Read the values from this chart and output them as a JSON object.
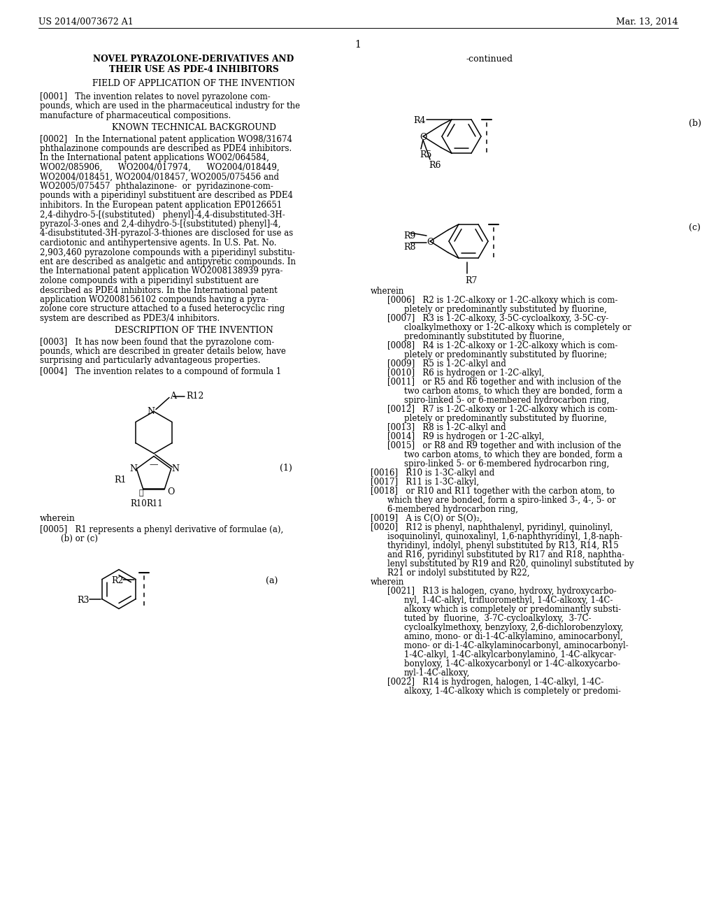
{
  "bg_color": "#ffffff",
  "header_left": "US 2014/0073672 A1",
  "header_right": "Mar. 13, 2014",
  "page_number": "1",
  "title_line1": "NOVEL PYRAZOLONE-DERIVATIVES AND",
  "title_line2": "THEIR USE AS PDE-4 INHIBITORS",
  "section1": "FIELD OF APPLICATION OF THE INVENTION",
  "para0001_lines": [
    "[0001]   The invention relates to novel pyrazolone com-",
    "pounds, which are used in the pharmaceutical industry for the",
    "manufacture of pharmaceutical compositions."
  ],
  "section2": "KNOWN TECHNICAL BACKGROUND",
  "para0002_lines": [
    "[0002]   In the International patent application WO98/31674",
    "phthalazinone compounds are described as PDE4 inhibitors.",
    "In the International patent applications WO02/064584,",
    "WO02/085906,      WO2004/017974,      WO2004/018449,",
    "WO2004/018451, WO2004/018457, WO2005/075456 and",
    "WO2005/075457  phthalazinone-  or  pyridazinone-com-",
    "pounds with a piperidinyl substituent are described as PDE4",
    "inhibitors. In the European patent application EP0126651",
    "2,4-dihydro-5-[(substituted)   phenyl]-4,4-disubstituted-3H-",
    "pyrazol-3-ones and 2,4-dihydro-5-[(substituted) phenyl]-4,",
    "4-disubstituted-3H-pyrazol-3-thiones are disclosed for use as",
    "cardiotonic and antihypertensive agents. In U.S. Pat. No.",
    "2,903,460 pyrazolone compounds with a piperidinyl substitu-",
    "ent are described as analgetic and antipyretic compounds. In",
    "the International patent application WO2008138939 pyra-",
    "zolone compounds with a piperidinyl substituent are",
    "described as PDE4 inhibitors. In the International patent",
    "application WO2008156102 compounds having a pyra-",
    "zolone core structure attached to a fused heterocyclic ring",
    "system are described as PDE3/4 inhibitors."
  ],
  "section3": "DESCRIPTION OF THE INVENTION",
  "para0003_lines": [
    "[0003]   It has now been found that the pyrazolone com-",
    "pounds, which are described in greater details below, have",
    "surprising and particularly advantageous properties."
  ],
  "para0004_lines": [
    "[0004]   The invention relates to a compound of formula 1"
  ],
  "wherein_text": "wherein",
  "para0005_lines": [
    "[0005]   R1 represents a phenyl derivative of formulae (a),",
    "        (b) or (c)"
  ],
  "continued_label": "-continued",
  "formula_b_label": "(b)",
  "formula_c_label": "(c)",
  "formula1_label": "(1)",
  "formula_a_label": "(a)",
  "right_col_lines": [
    "wherein",
    "    [0006]   R2 is 1-2C-alkoxy or 1-2C-alkoxy which is com-",
    "        pletely or predominantly substituted by fluorine,",
    "    [0007]   R3 is 1-2C-alkoxy, 3-5C-cycloalkoxy, 3-5C-cy-",
    "        cloalkylmethoxy or 1-2C-alkoxy which is completely or",
    "        predominantly substituted by fluorine,",
    "    [0008]   R4 is 1-2C-alkoxy or 1-2C-alkoxy which is com-",
    "        pletely or predominantly substituted by fluorine;",
    "    [0009]   R5 is 1-2C-alkyl and",
    "    [0010]   R6 is hydrogen or 1-2C-alkyl,",
    "    [0011]   or R5 and R6 together and with inclusion of the",
    "        two carbon atoms, to which they are bonded, form a",
    "        spiro-linked 5- or 6-membered hydrocarbon ring,",
    "    [0012]   R7 is 1-2C-alkoxy or 1-2C-alkoxy which is com-",
    "        pletely or predominantly substituted by fluorine,",
    "    [0013]   R8 is 1-2C-alkyl and",
    "    [0014]   R9 is hydrogen or 1-2C-alkyl,",
    "    [0015]   or R8 and R9 together and with inclusion of the",
    "        two carbon atoms, to which they are bonded, form a",
    "        spiro-linked 5- or 6-membered hydrocarbon ring,",
    "[0016]   R10 is 1-3C-alkyl and",
    "[0017]   R11 is 1-3C-alkyl,",
    "[0018]   or R10 and R11 together with the carbon atom, to",
    "    which they are bonded, form a spiro-linked 3-, 4-, 5- or",
    "    6-membered hydrocarbon ring,",
    "[0019]   A is C(O) or S(O)₂,",
    "[0020]   R12 is phenyl, naphthalenyl, pyridinyl, quinolinyl,",
    "    isoquinolinyl, quinoxalinyl, 1,6-naphthyridinyl, 1,8-naph-",
    "    thyridinyl, indolyl, phenyl substituted by R13, R14, R15",
    "    and R16, pyridinyl substituted by R17 and R18, naphtha-",
    "    lenyl substituted by R19 and R20, quinolinyl substituted by",
    "    R21 or indolyl substituted by R22,",
    "wherein",
    "    [0021]   R13 is halogen, cyano, hydroxy, hydroxycarbо-",
    "        nyl, 1-4C-alkyl, trifluoromethyl, 1-4C-alkoxy, 1-4C-",
    "        alkoxy which is completely or predominantly substi-",
    "        tuted by  fluorine,  3-7C-cycloalkyloxy,  3-7C-",
    "        cycloalkylmethoxy, benzyloxy, 2,6-dichlorobenzyloxy,",
    "        amino, mono- or di-1-4C-alkylamino, aminocarbonyl,",
    "        mono- or di-1-4C-alkylaminocarbonyl, aminocarbonyl-",
    "        1-4C-alkyl, 1-4C-alkylcarbonylamino, 1-4C-alkycar-",
    "        bonyloxy, 1-4C-alkoxycarbonyl or 1-4C-alkoxycarbo-",
    "        nyl-1-4C-alkoxy,",
    "    [0022]   R14 is hydrogen, halogen, 1-4C-alkyl, 1-4C-",
    "        alkoxy, 1-4C-alkoxy which is completely or predomi-"
  ]
}
